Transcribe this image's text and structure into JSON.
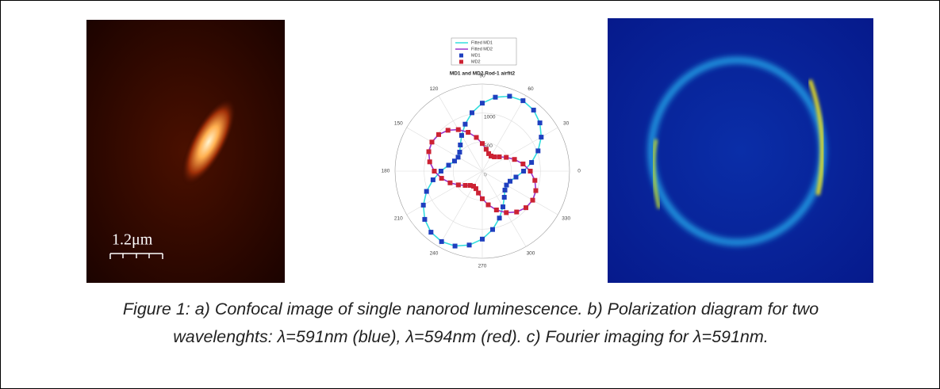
{
  "figure": {
    "scale_bar": "1.2μm",
    "caption": "Figure 1: a) Confocal image of single nanorod luminescence. b) Polarization diagram for two wavelenghts: λ=591nm (blue), λ=594nm (red). c) Fourier imaging for  λ=591nm."
  },
  "chart_data": {
    "type": "polar",
    "title": "MD1 and MD2 Rod-1 airfit2",
    "x": [
      0,
      10,
      20,
      30,
      40,
      50,
      60,
      70,
      80,
      90,
      100,
      110,
      120,
      130,
      140,
      150,
      160,
      170,
      180,
      190,
      200,
      210,
      220,
      230,
      240,
      250,
      260,
      270,
      280,
      290,
      300,
      310,
      320,
      330,
      340,
      350
    ],
    "series": [
      {
        "name": "Fitted MD1",
        "color": "#33dddd",
        "style": "line",
        "values": [
          710,
          860,
          1020,
          1170,
          1292,
          1372,
          1400,
          1372,
          1292,
          1170,
          1020,
          860,
          710,
          588,
          508,
          480,
          508,
          588,
          710,
          860,
          1020,
          1170,
          1292,
          1372,
          1400,
          1372,
          1292,
          1170,
          1020,
          860,
          710,
          588,
          508,
          480,
          508,
          588
        ]
      },
      {
        "name": "Fitted MD2",
        "color": "#9933cc",
        "style": "line",
        "values": [
          825,
          711,
          589,
          475,
          382,
          321,
          300,
          321,
          382,
          475,
          589,
          711,
          825,
          918,
          979,
          1000,
          979,
          918,
          825,
          711,
          589,
          475,
          382,
          321,
          300,
          321,
          382,
          475,
          589,
          711,
          825,
          918,
          979,
          1000,
          979,
          918
        ]
      },
      {
        "name": "MD1",
        "color": "#1f3fbf",
        "style": "marker",
        "values": [
          710,
          860,
          1020,
          1170,
          1292,
          1372,
          1400,
          1372,
          1292,
          1170,
          1020,
          860,
          710,
          588,
          508,
          480,
          508,
          588,
          710,
          860,
          1020,
          1170,
          1292,
          1372,
          1400,
          1372,
          1292,
          1170,
          1020,
          860,
          710,
          588,
          508,
          480,
          508,
          588
        ]
      },
      {
        "name": "MD2",
        "color": "#cc2233",
        "style": "marker",
        "values": [
          825,
          711,
          589,
          475,
          382,
          321,
          300,
          321,
          382,
          475,
          589,
          711,
          825,
          918,
          979,
          1000,
          979,
          918,
          825,
          711,
          589,
          475,
          382,
          321,
          300,
          321,
          382,
          475,
          589,
          711,
          825,
          918,
          979,
          1000,
          979,
          918
        ]
      }
    ],
    "rlim": [
      0,
      1500
    ],
    "rticks": [
      0,
      500,
      1000
    ],
    "thetaticks": [
      0,
      30,
      60,
      90,
      120,
      150,
      180,
      210,
      240,
      270,
      300,
      330
    ]
  }
}
